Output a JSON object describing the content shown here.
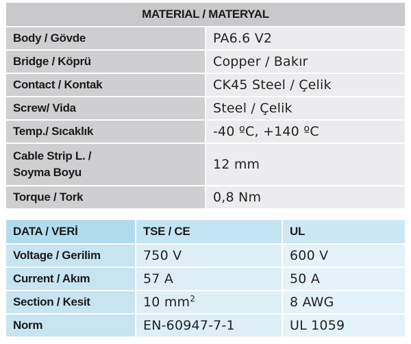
{
  "material": {
    "title": "MATERIAL / MATERYAL",
    "rows": [
      {
        "label": "Body / Gövde",
        "value": "PA6.6 V2"
      },
      {
        "label": "Bridge / Köprü",
        "value": "Copper / Bakır"
      },
      {
        "label": "Contact / Kontak",
        "value": "CK45 Steel / Çelik"
      },
      {
        "label": "Screw/ Vida",
        "value": "Steel / Çelik"
      },
      {
        "label": "Temp./ Sıcaklık",
        "value": "-40 ºC, +140 ºC"
      },
      {
        "label_line1": "Cable Strip L. /",
        "label_line2": "Soyma Boyu",
        "value": "12 mm"
      },
      {
        "label": "Torque / Tork",
        "value": "0,8 Nm"
      }
    ]
  },
  "data": {
    "headers": [
      "DATA / VERİ",
      "TSE / CE",
      "UL"
    ],
    "rows": [
      {
        "label": "Voltage / Gerilim",
        "tse": "750 V",
        "ul": "600 V"
      },
      {
        "label": "Current / Akım",
        "tse": "57 A",
        "ul": "50 A"
      },
      {
        "label": "Section / Kesit",
        "tse": "10 mm",
        "tse_sup": "2",
        "ul": "8 AWG"
      },
      {
        "label": "Norm",
        "tse": "EN-60947-7-1",
        "ul": "UL 1059"
      }
    ]
  }
}
